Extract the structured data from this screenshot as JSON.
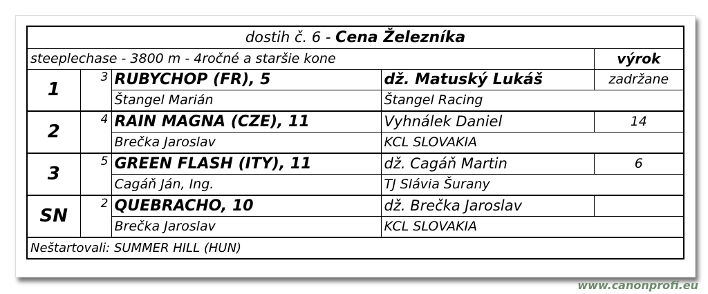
{
  "header": {
    "race_prefix": "dostih č. 6 - ",
    "race_name": "Cena Železníka",
    "conditions": "steeplechase - 3800 m - 4ročné a staršie kone",
    "verdict_header": "výrok"
  },
  "results": [
    {
      "place": "1",
      "number": "3",
      "horse": "RUBYCHOP (FR), 5",
      "jockey": "dž. Matuský Lukáš",
      "verdict": "zadržane",
      "trainer": "Štangel Marián",
      "owner": "Štangel Racing"
    },
    {
      "place": "2",
      "number": "4",
      "horse": "RAIN MAGNA (CZE), 11",
      "jockey": "Vyhnálek Daniel",
      "verdict": "14",
      "trainer": "Brečka Jaroslav",
      "owner": "KCL SLOVAKIA"
    },
    {
      "place": "3",
      "number": "5",
      "horse": "GREEN FLASH (ITY), 11",
      "jockey": "dž. Cagáň Martin",
      "verdict": "6",
      "trainer": "Cagáň Ján, Ing.",
      "owner": "TJ Slávia Šurany"
    },
    {
      "place": "SN",
      "number": "2",
      "horse": "QUEBRACHO, 10",
      "jockey": "dž. Brečka Jaroslav",
      "verdict": "",
      "trainer": "Brečka Jaroslav",
      "owner": "KCL SLOVAKIA"
    }
  ],
  "footer": {
    "non_starters": "Neštartovali: SUMMER HILL (HUN)"
  },
  "watermark": "www.canonprofi.eu"
}
